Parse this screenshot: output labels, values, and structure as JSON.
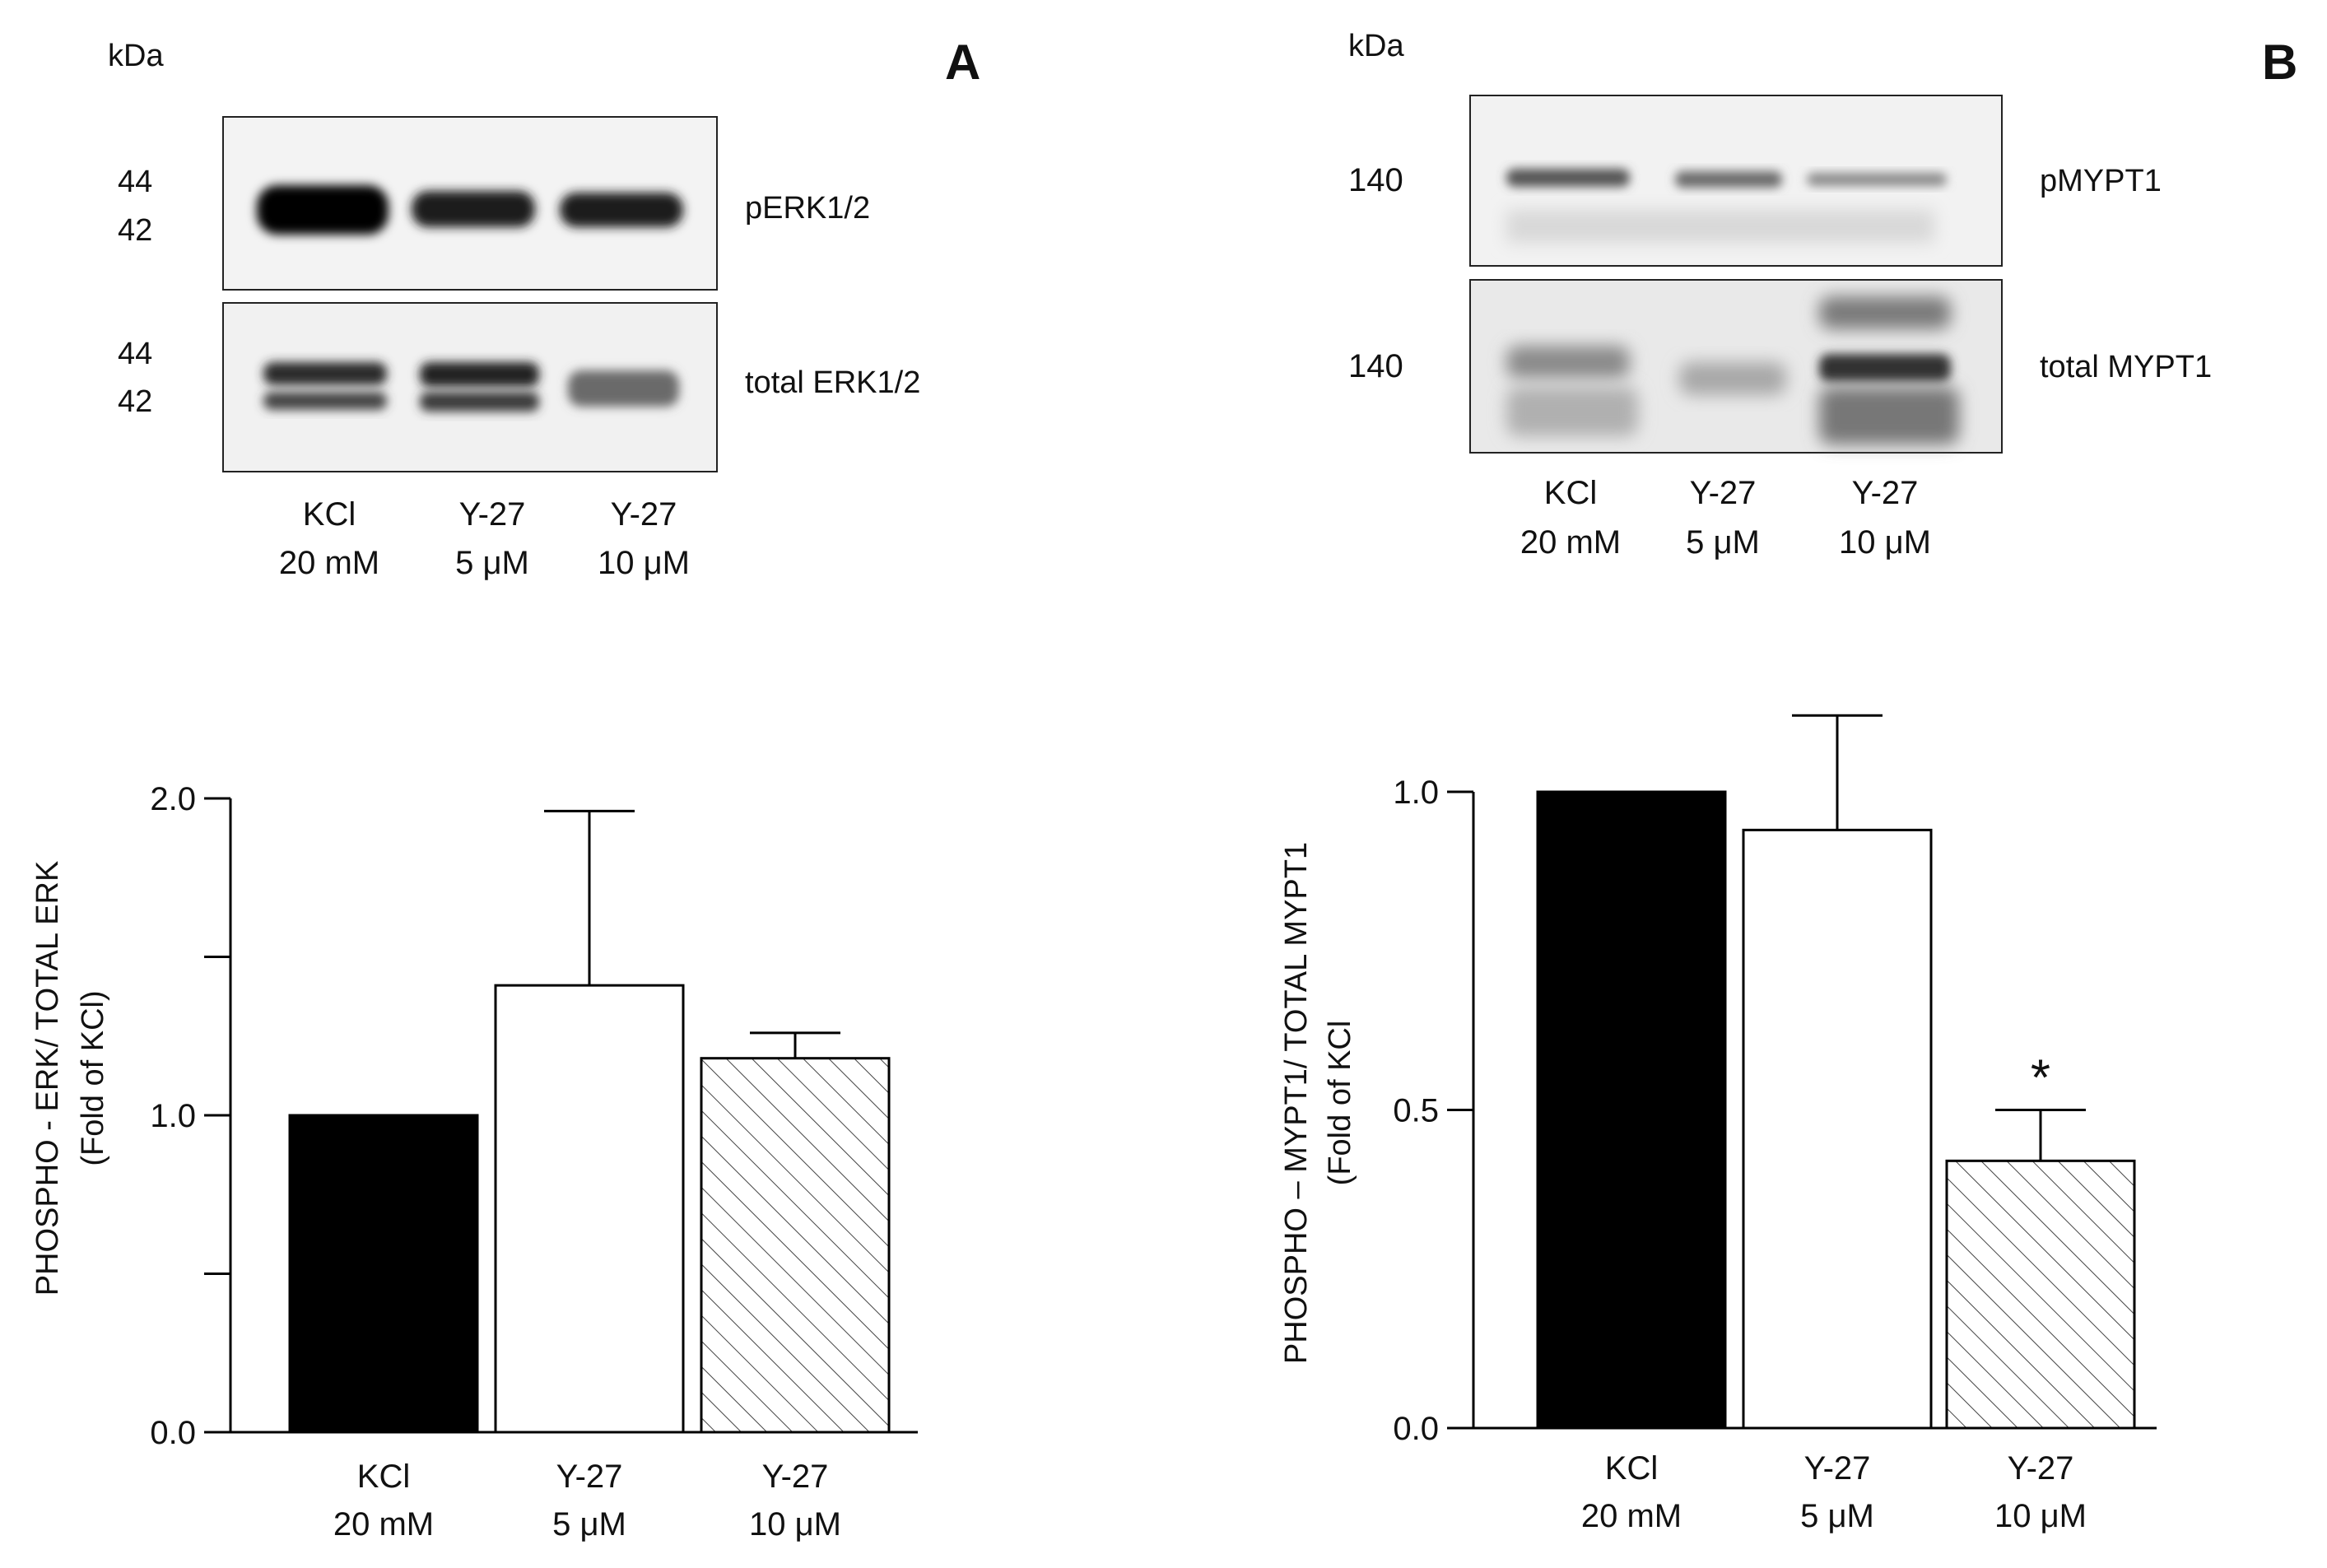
{
  "panels": [
    {
      "letter": "A",
      "kda_label": "kDa",
      "blots": [
        {
          "label": "pERK1/2",
          "markers": [
            "44",
            "42"
          ]
        },
        {
          "label": "total ERK1/2",
          "markers": [
            "44",
            "42"
          ]
        }
      ],
      "lanes": [
        {
          "line1": "KCl",
          "line2": "20 mM"
        },
        {
          "line1": "Y-27",
          "line2": "5 μM"
        },
        {
          "line1": "Y-27",
          "line2": "10 μM"
        }
      ]
    },
    {
      "letter": "B",
      "kda_label": "kDa",
      "blots": [
        {
          "label": "pMYPT1",
          "markers": [
            "140"
          ]
        },
        {
          "label": "total MYPT1",
          "markers": [
            "140"
          ]
        }
      ],
      "lanes": [
        {
          "line1": "KCl",
          "line2": "20 mM"
        },
        {
          "line1": "Y-27",
          "line2": "5 μM"
        },
        {
          "line1": "Y-27",
          "line2": "10 μM"
        }
      ]
    }
  ],
  "chart_data": [
    {
      "type": "bar",
      "ylabel": "PHOSPHO - ERK/ TOTAL ERK",
      "ylabel2": "(Fold of KCl)",
      "ylim": [
        0,
        2.0
      ],
      "yticks": [
        {
          "value": 0.0,
          "label": "0.0"
        },
        {
          "value": 0.5,
          "label": ""
        },
        {
          "value": 1.0,
          "label": "1.0"
        },
        {
          "value": 1.5,
          "label": ""
        },
        {
          "value": 2.0,
          "label": "2.0"
        }
      ],
      "categories": [
        {
          "line1": "KCl",
          "line2": "20 mM"
        },
        {
          "line1": "Y-27",
          "line2": "5 μM"
        },
        {
          "line1": "Y-27",
          "line2": "10 μM"
        }
      ],
      "values": [
        1.0,
        1.41,
        1.18
      ],
      "errors": [
        0,
        0.55,
        0.08
      ],
      "fills": [
        "black",
        "white",
        "hatch"
      ],
      "annotations": [
        "",
        "",
        ""
      ]
    },
    {
      "type": "bar",
      "ylabel": "PHOSPHO – MYPT1/ TOTAL MYPT1",
      "ylabel2": "(Fold of KCl",
      "ylim": [
        0,
        1.0
      ],
      "yticks": [
        {
          "value": 0.0,
          "label": "0.0"
        },
        {
          "value": 0.5,
          "label": "0.5"
        },
        {
          "value": 1.0,
          "label": "1.0"
        }
      ],
      "categories": [
        {
          "line1": "KCl",
          "line2": "20 mM"
        },
        {
          "line1": "Y-27",
          "line2": "5 μM"
        },
        {
          "line1": "Y-27",
          "line2": "10 μM"
        }
      ],
      "values": [
        1.0,
        0.94,
        0.42
      ],
      "errors": [
        0,
        0.18,
        0.08
      ],
      "fills": [
        "black",
        "white",
        "hatch"
      ],
      "annotations": [
        "",
        "",
        "*"
      ]
    }
  ]
}
